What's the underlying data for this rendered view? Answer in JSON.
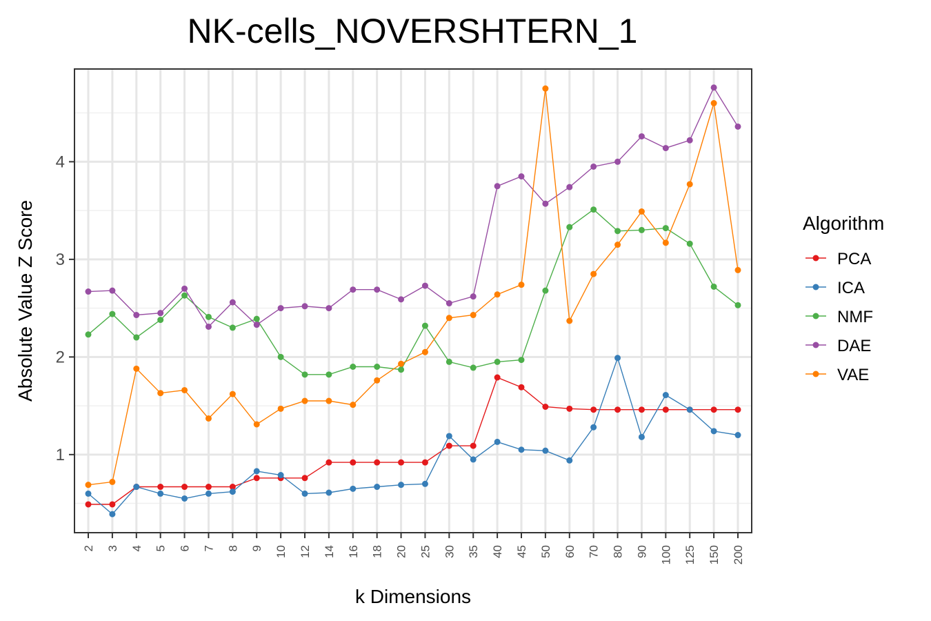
{
  "chart_data": {
    "type": "line",
    "title": "NK-cells_NOVERSHTERN_1",
    "xlabel": "k Dimensions",
    "ylabel": "Absolute Value Z Score",
    "categories": [
      "2",
      "3",
      "4",
      "5",
      "6",
      "7",
      "8",
      "9",
      "10",
      "12",
      "14",
      "16",
      "18",
      "20",
      "25",
      "30",
      "35",
      "40",
      "45",
      "50",
      "60",
      "70",
      "80",
      "90",
      "100",
      "125",
      "150",
      "200"
    ],
    "ylim": [
      0.2,
      4.95
    ],
    "yticks": [
      1,
      2,
      3,
      4
    ],
    "grid": true,
    "legend": {
      "title": "Algorithm",
      "position": "right"
    },
    "series": [
      {
        "name": "PCA",
        "color": "#e41a1c",
        "values": [
          0.49,
          0.49,
          0.67,
          0.67,
          0.67,
          0.67,
          0.67,
          0.76,
          0.76,
          0.76,
          0.92,
          0.92,
          0.92,
          0.92,
          0.92,
          1.09,
          1.09,
          1.79,
          1.69,
          1.49,
          1.47,
          1.46,
          1.46,
          1.46,
          1.46,
          1.46,
          1.46,
          1.46
        ]
      },
      {
        "name": "ICA",
        "color": "#377eb8",
        "values": [
          0.6,
          0.39,
          0.67,
          0.6,
          0.55,
          0.6,
          0.62,
          0.83,
          0.79,
          0.6,
          0.61,
          0.65,
          0.67,
          0.69,
          0.7,
          1.19,
          0.95,
          1.13,
          1.05,
          1.04,
          0.94,
          1.28,
          1.99,
          1.18,
          1.61,
          1.46,
          1.24,
          1.2
        ]
      },
      {
        "name": "NMF",
        "color": "#4daf4a",
        "values": [
          2.23,
          2.44,
          2.2,
          2.38,
          2.63,
          2.41,
          2.3,
          2.39,
          2.0,
          1.82,
          1.82,
          1.9,
          1.9,
          1.87,
          2.32,
          1.95,
          1.89,
          1.95,
          1.97,
          2.68,
          3.33,
          3.51,
          3.29,
          3.3,
          3.32,
          3.16,
          2.72,
          2.53
        ]
      },
      {
        "name": "DAE",
        "color": "#984ea3",
        "values": [
          2.67,
          2.68,
          2.43,
          2.45,
          2.7,
          2.31,
          2.56,
          2.33,
          2.5,
          2.52,
          2.5,
          2.69,
          2.69,
          2.59,
          2.73,
          2.55,
          2.62,
          3.75,
          3.85,
          3.57,
          3.74,
          3.95,
          4.0,
          4.26,
          4.14,
          4.22,
          4.76,
          4.36
        ]
      },
      {
        "name": "VAE",
        "color": "#ff7f00",
        "values": [
          0.69,
          0.72,
          1.88,
          1.63,
          1.66,
          1.37,
          1.62,
          1.31,
          1.47,
          1.55,
          1.55,
          1.51,
          1.76,
          1.93,
          2.05,
          2.4,
          2.43,
          2.64,
          2.74,
          4.75,
          2.37,
          2.85,
          3.15,
          3.49,
          3.17,
          3.77,
          4.6,
          2.89
        ]
      }
    ]
  }
}
